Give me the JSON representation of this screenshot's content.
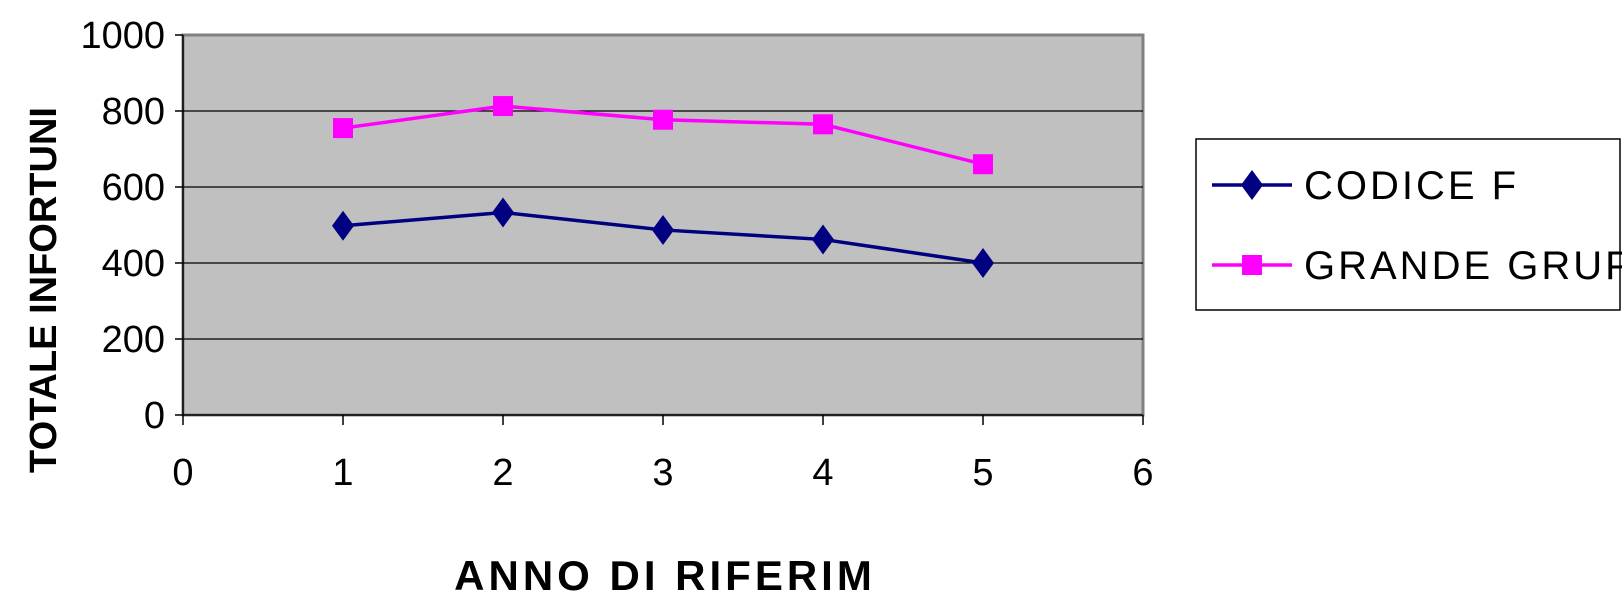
{
  "chart_data": {
    "type": "line",
    "title": "",
    "xlabel": "ANNO DI RIFERIM",
    "ylabel": "TOTALE INFORTUNI",
    "xlim": [
      0,
      6
    ],
    "ylim": [
      0,
      1000
    ],
    "x_ticks": [
      0,
      1,
      2,
      3,
      4,
      5,
      6
    ],
    "y_ticks": [
      0,
      200,
      400,
      600,
      800,
      1000
    ],
    "grid": "horizontal",
    "legend_position": "right",
    "plot_background": "#c0c0c0",
    "x": [
      1,
      2,
      3,
      4,
      5
    ],
    "series": [
      {
        "name": "CODICE F",
        "values": [
          498,
          533,
          487,
          462,
          400
        ],
        "color": "#000080",
        "marker": "diamond"
      },
      {
        "name": "GRANDE GRUP",
        "values": [
          755,
          813,
          777,
          765,
          660
        ],
        "color": "#ff00ff",
        "marker": "square"
      }
    ]
  }
}
